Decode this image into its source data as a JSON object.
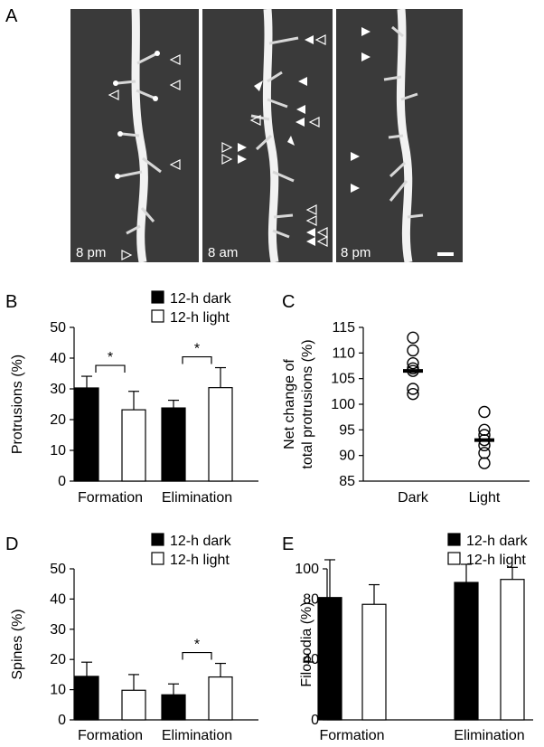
{
  "panels": {
    "A": {
      "letter": "A",
      "images": [
        {
          "time_label": "8 pm"
        },
        {
          "time_label": "8 am"
        },
        {
          "time_label": "8 pm"
        }
      ],
      "colors": {
        "background": "#3a3a3a",
        "dendrite": "#f2f2f2"
      }
    },
    "B": {
      "letter": "B"
    },
    "C": {
      "letter": "C"
    },
    "D": {
      "letter": "D"
    },
    "E": {
      "letter": "E"
    }
  },
  "chart_data": [
    {
      "id": "B",
      "type": "bar",
      "categories": [
        "Formation",
        "Elimination"
      ],
      "series": [
        {
          "name": "12-h dark",
          "values": [
            30.3,
            23.8
          ],
          "errors": [
            3.8,
            2.5
          ],
          "color": "#000000"
        },
        {
          "name": "12-h light",
          "values": [
            23.2,
            30.4
          ],
          "errors": [
            6.0,
            6.5
          ],
          "color": "#ffffff"
        }
      ],
      "ylabel": "Protrusions (%)",
      "ylim": [
        0,
        50
      ],
      "yticks": [
        0,
        10,
        20,
        30,
        40,
        50
      ],
      "significance": [
        "*",
        "*"
      ],
      "legend": "top-right"
    },
    {
      "id": "C",
      "type": "scatter",
      "categories": [
        "Dark",
        "Light"
      ],
      "points": [
        {
          "x": "Dark",
          "values": [
            113,
            110.5,
            108,
            107,
            106.5,
            103,
            102
          ]
        },
        {
          "x": "Light",
          "values": [
            98.5,
            95,
            94,
            93,
            92,
            90.5,
            88.5
          ]
        }
      ],
      "means": [
        106.5,
        93
      ],
      "ylabel": "Net change of total protrusions (%)",
      "ylabel_lines": [
        "Net change of",
        "total protrusions (%)"
      ],
      "ylim": [
        85,
        115
      ],
      "yticks": [
        85,
        90,
        95,
        100,
        105,
        110,
        115
      ]
    },
    {
      "id": "D",
      "type": "bar",
      "categories": [
        "Formation",
        "Elimination"
      ],
      "series": [
        {
          "name": "12-h dark",
          "values": [
            14.4,
            8.3
          ],
          "errors": [
            4.7,
            3.6
          ],
          "color": "#000000"
        },
        {
          "name": "12-h light",
          "values": [
            9.8,
            14.2
          ],
          "errors": [
            5.2,
            4.5
          ],
          "color": "#ffffff"
        }
      ],
      "ylabel": "Spines (%)",
      "ylim": [
        0,
        50
      ],
      "yticks": [
        0,
        10,
        20,
        30,
        40,
        50
      ],
      "significance": [
        "",
        "*"
      ],
      "legend": "top-right"
    },
    {
      "id": "E",
      "type": "bar",
      "categories": [
        "Formation",
        "Elimination"
      ],
      "series": [
        {
          "name": "12-h dark",
          "values": [
            81,
            91
          ],
          "errors": [
            25,
            12
          ],
          "color": "#000000"
        },
        {
          "name": "12-h light",
          "values": [
            76.5,
            93
          ],
          "errors": [
            13,
            8
          ],
          "color": "#ffffff"
        }
      ],
      "ylabel": "Filopodia (%)",
      "ylim": [
        0,
        100
      ],
      "yticks": [
        0,
        40,
        80,
        100
      ],
      "significance": [
        "",
        ""
      ],
      "legend": "top-right"
    }
  ]
}
